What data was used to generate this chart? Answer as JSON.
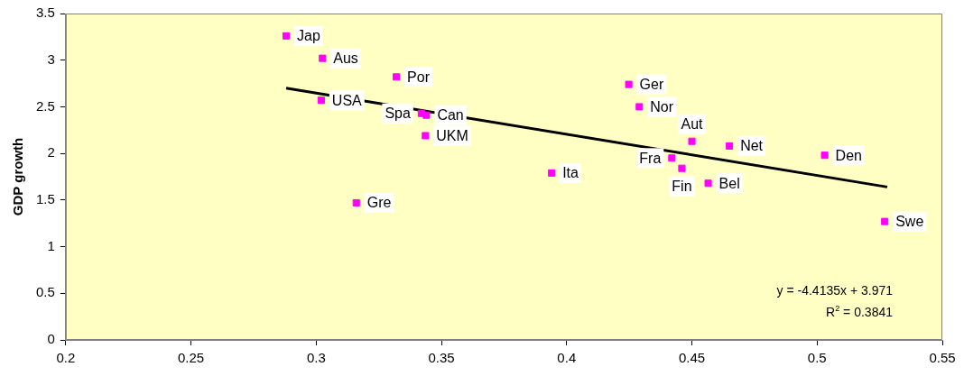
{
  "chart_data": {
    "type": "scatter",
    "ylabel": "GDP growth",
    "xlim": [
      0.2,
      0.55
    ],
    "xticks": [
      0.2,
      0.25,
      0.3,
      0.35,
      0.4,
      0.45,
      0.5,
      0.55
    ],
    "ylim": [
      0,
      3.5
    ],
    "yticks": [
      0,
      0.5,
      1,
      1.5,
      2,
      2.5,
      3,
      3.5
    ],
    "grid": false,
    "legend": false,
    "marker": "square",
    "series": [
      {
        "type": "scatter",
        "color": "#ff00ff",
        "x": [
          0.288,
          0.3025,
          0.302,
          0.332,
          0.344,
          0.342,
          0.3436,
          0.316,
          0.394,
          0.4248,
          0.429,
          0.45,
          0.465,
          0.442,
          0.446,
          0.4565,
          0.503,
          0.527
        ],
        "values": [
          3.26,
          3.02,
          2.57,
          2.82,
          2.41,
          2.43,
          2.19,
          1.47,
          1.79,
          2.74,
          2.5,
          2.13,
          2.08,
          1.95,
          1.84,
          1.68,
          1.98,
          1.27
        ]
      },
      {
        "type": "line",
        "color": "#000000",
        "marker": "none",
        "x": [
          0.288,
          0.528
        ],
        "values": [
          2.7,
          1.64
        ]
      }
    ],
    "annotations": [
      {
        "text": "Jap",
        "x": 0.288,
        "y": 3.26
      },
      {
        "text": "Aus",
        "x": 0.3025,
        "y": 3.02
      },
      {
        "text": "USA",
        "x": 0.302,
        "y": 2.57
      },
      {
        "text": "Por",
        "x": 0.332,
        "y": 2.82
      },
      {
        "text": "Can",
        "x": 0.344,
        "y": 2.41
      },
      {
        "text": "Spa",
        "x": 0.342,
        "y": 2.43
      },
      {
        "text": "UKM",
        "x": 0.3436,
        "y": 2.19
      },
      {
        "text": "Gre",
        "x": 0.316,
        "y": 1.47
      },
      {
        "text": "Ita",
        "x": 0.394,
        "y": 1.79
      },
      {
        "text": "Ger",
        "x": 0.4248,
        "y": 2.74
      },
      {
        "text": "Nor",
        "x": 0.429,
        "y": 2.5
      },
      {
        "text": "Aut",
        "x": 0.45,
        "y": 2.13
      },
      {
        "text": "Net",
        "x": 0.465,
        "y": 2.08
      },
      {
        "text": "Fra",
        "x": 0.442,
        "y": 1.95
      },
      {
        "text": "Fin",
        "x": 0.446,
        "y": 1.84
      },
      {
        "text": "Bel",
        "x": 0.4565,
        "y": 1.68
      },
      {
        "text": "Den",
        "x": 0.503,
        "y": 1.98
      },
      {
        "text": "Swe",
        "x": 0.527,
        "y": 1.27
      },
      "y = -4.4135x + 3.971",
      "R$^{2}$ = 0.3841"
    ]
  }
}
